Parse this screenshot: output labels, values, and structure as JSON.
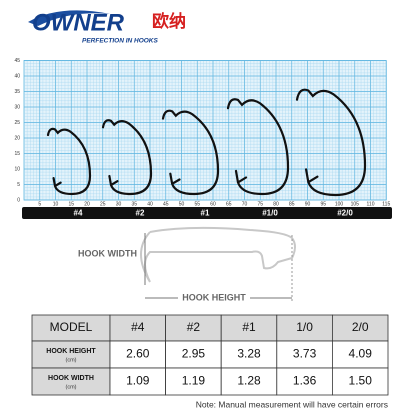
{
  "logo": {
    "brand": "OWNER",
    "chinese": "欧纳",
    "tagline": "PERFECTION IN HOOKS"
  },
  "grid": {
    "yticks": [
      0,
      5,
      10,
      15,
      20,
      25,
      30,
      35,
      40,
      45
    ],
    "xticks": [
      5,
      10,
      15,
      20,
      25,
      30,
      35,
      40,
      45,
      50,
      55,
      60,
      65,
      70,
      75,
      80,
      85,
      90,
      95,
      100,
      105,
      110,
      115
    ]
  },
  "sizes": [
    "#4",
    "#2",
    "#1",
    "#1/0",
    "#2/0"
  ],
  "diagram": {
    "width_label": "HOOK WIDTH",
    "height_label": "HOOK HEIGHT"
  },
  "table": {
    "header": [
      "MODEL",
      "#4",
      "#2",
      "#1",
      "1/0",
      "2/0"
    ],
    "rows": [
      {
        "label": "HOOK HEIGHT",
        "unit": "(cm)",
        "cells": [
          "2.60",
          "2.95",
          "3.28",
          "3.73",
          "4.09"
        ]
      },
      {
        "label": "HOOK WIDTH",
        "unit": "(cm)",
        "cells": [
          "1.09",
          "1.19",
          "1.28",
          "1.36",
          "1.50"
        ]
      }
    ]
  },
  "note": "Note: Manual measurement will have certain errors"
}
